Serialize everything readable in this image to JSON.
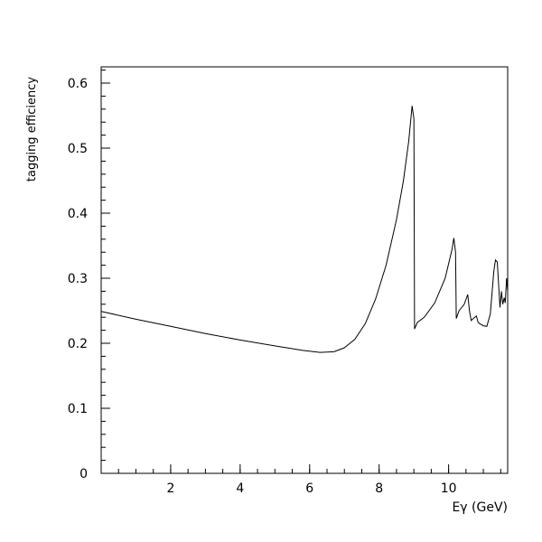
{
  "chart_data": {
    "type": "line",
    "title": "",
    "xlabel": "Eγ (GeV)",
    "ylabel": "tagging efficiency",
    "xlim": [
      0,
      11.7
    ],
    "ylim": [
      0,
      0.625
    ],
    "grid": false,
    "xticks": [
      {
        "value": 2,
        "label": "2"
      },
      {
        "value": 4,
        "label": "4"
      },
      {
        "value": 6,
        "label": "6"
      },
      {
        "value": 8,
        "label": "8"
      },
      {
        "value": 10,
        "label": "10"
      }
    ],
    "yticks": [
      {
        "value": 0,
        "label": "0"
      },
      {
        "value": 0.1,
        "label": "0.1"
      },
      {
        "value": 0.2,
        "label": "0.2"
      },
      {
        "value": 0.3,
        "label": "0.3"
      },
      {
        "value": 0.4,
        "label": "0.4"
      },
      {
        "value": 0.5,
        "label": "0.5"
      },
      {
        "value": 0.6,
        "label": "0.6"
      }
    ],
    "x_minor_step": 0.5,
    "y_minor_step": 0.02,
    "series": [
      {
        "color": "#000000",
        "points": [
          [
            0.0,
            0.249
          ],
          [
            1.0,
            0.237
          ],
          [
            2.0,
            0.226
          ],
          [
            3.0,
            0.215
          ],
          [
            4.0,
            0.205
          ],
          [
            5.0,
            0.196
          ],
          [
            5.8,
            0.189
          ],
          [
            6.3,
            0.186
          ],
          [
            6.7,
            0.187
          ],
          [
            7.0,
            0.193
          ],
          [
            7.3,
            0.206
          ],
          [
            7.6,
            0.23
          ],
          [
            7.9,
            0.268
          ],
          [
            8.2,
            0.32
          ],
          [
            8.5,
            0.39
          ],
          [
            8.7,
            0.45
          ],
          [
            8.85,
            0.51
          ],
          [
            8.95,
            0.565
          ],
          [
            9.0,
            0.545
          ],
          [
            9.02,
            0.222
          ],
          [
            9.1,
            0.232
          ],
          [
            9.3,
            0.24
          ],
          [
            9.6,
            0.262
          ],
          [
            9.9,
            0.3
          ],
          [
            10.1,
            0.345
          ],
          [
            10.15,
            0.362
          ],
          [
            10.2,
            0.34
          ],
          [
            10.22,
            0.238
          ],
          [
            10.3,
            0.25
          ],
          [
            10.45,
            0.26
          ],
          [
            10.55,
            0.275
          ],
          [
            10.6,
            0.25
          ],
          [
            10.65,
            0.235
          ],
          [
            10.75,
            0.24
          ],
          [
            10.8,
            0.242
          ],
          [
            10.85,
            0.232
          ],
          [
            10.9,
            0.23
          ],
          [
            11.0,
            0.227
          ],
          [
            11.1,
            0.226
          ],
          [
            11.2,
            0.245
          ],
          [
            11.3,
            0.31
          ],
          [
            11.35,
            0.328
          ],
          [
            11.4,
            0.325
          ],
          [
            11.45,
            0.28
          ],
          [
            11.48,
            0.255
          ],
          [
            11.52,
            0.28
          ],
          [
            11.56,
            0.26
          ],
          [
            11.6,
            0.27
          ],
          [
            11.63,
            0.262
          ],
          [
            11.67,
            0.3
          ],
          [
            11.7,
            0.28
          ]
        ]
      }
    ]
  }
}
